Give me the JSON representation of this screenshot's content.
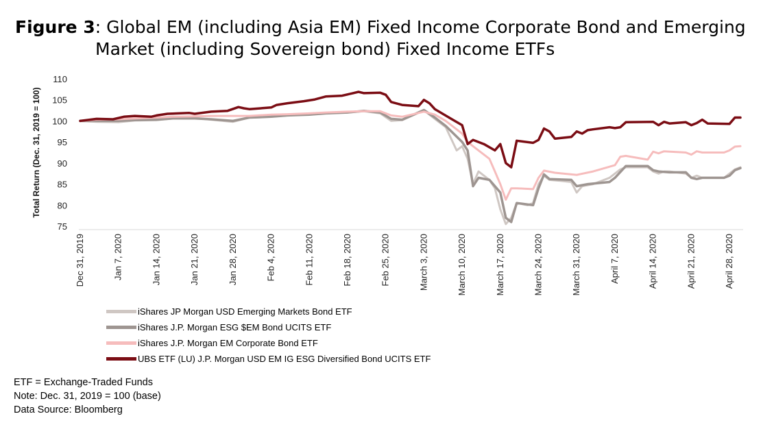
{
  "title": {
    "figure_label": "Figure 3",
    "colon": ":",
    "line1": "Global EM (including Asia EM) Fixed Income Corporate Bond and Emerging",
    "line2": "Market (including Sovereign bond) Fixed Income ETFs"
  },
  "notes": [
    "ETF = Exchange-Traded Funds",
    "Note: Dec. 31, 2019 = 100 (base)",
    "Data Source: Bloomberg"
  ],
  "chart_data": {
    "type": "line",
    "ylabel": "Total Return (Dec. 31, 2019 = 100)",
    "ylim": [
      75,
      110
    ],
    "yticks": [
      75,
      80,
      85,
      90,
      95,
      100,
      105,
      110
    ],
    "x_range": [
      "2019-12-31",
      "2020-04-30"
    ],
    "xticks": [
      {
        "date": "2019-12-31",
        "label": "Dec 31, 2019"
      },
      {
        "date": "2020-01-07",
        "label": "Jan 7, 2020"
      },
      {
        "date": "2020-01-14",
        "label": "Jan 14, 2020"
      },
      {
        "date": "2020-01-21",
        "label": "Jan 21, 2020"
      },
      {
        "date": "2020-01-28",
        "label": "Jan 28, 2020"
      },
      {
        "date": "2020-02-04",
        "label": "Feb 4, 2020"
      },
      {
        "date": "2020-02-11",
        "label": "Feb 11, 2020"
      },
      {
        "date": "2020-02-18",
        "label": "Feb 18, 2020"
      },
      {
        "date": "2020-02-25",
        "label": "Feb 25, 2020"
      },
      {
        "date": "2020-03-03",
        "label": "March 3, 2020"
      },
      {
        "date": "2020-03-10",
        "label": "March 10, 2020"
      },
      {
        "date": "2020-03-17",
        "label": "March 17, 2020"
      },
      {
        "date": "2020-03-24",
        "label": "March 24, 2020"
      },
      {
        "date": "2020-03-31",
        "label": "March 31, 2020"
      },
      {
        "date": "2020-04-07",
        "label": "April 7, 2020"
      },
      {
        "date": "2020-04-14",
        "label": "April 14, 2020"
      },
      {
        "date": "2020-04-21",
        "label": "April 21, 2020"
      },
      {
        "date": "2020-04-28",
        "label": "April 28, 2020"
      }
    ],
    "grid": false,
    "legend_position": "bottom-left",
    "series": [
      {
        "name": "iShares JP Morgan USD Emerging Markets Bond ETF",
        "color": "#cfc7c3",
        "width": 3,
        "points": [
          [
            "2019-12-31",
            100
          ],
          [
            "2020-01-03",
            99.8
          ],
          [
            "2020-01-07",
            99.7
          ],
          [
            "2020-01-10",
            100.1
          ],
          [
            "2020-01-14",
            100.2
          ],
          [
            "2020-01-17",
            100.6
          ],
          [
            "2020-01-21",
            100.7
          ],
          [
            "2020-01-24",
            100.3
          ],
          [
            "2020-01-28",
            99.8
          ],
          [
            "2020-01-31",
            100.8
          ],
          [
            "2020-02-04",
            101
          ],
          [
            "2020-02-07",
            101.3
          ],
          [
            "2020-02-11",
            101.6
          ],
          [
            "2020-02-14",
            101.8
          ],
          [
            "2020-02-18",
            102
          ],
          [
            "2020-02-21",
            102.3
          ],
          [
            "2020-02-24",
            101.8
          ],
          [
            "2020-02-26",
            100
          ],
          [
            "2020-02-28",
            100.2
          ],
          [
            "2020-03-03",
            102.5
          ],
          [
            "2020-03-05",
            100.5
          ],
          [
            "2020-03-07",
            98.5
          ],
          [
            "2020-03-09",
            93
          ],
          [
            "2020-03-10",
            94
          ],
          [
            "2020-03-11",
            91
          ],
          [
            "2020-03-12",
            85
          ],
          [
            "2020-03-13",
            88
          ],
          [
            "2020-03-15",
            86
          ],
          [
            "2020-03-16",
            84
          ],
          [
            "2020-03-17",
            79
          ],
          [
            "2020-03-18",
            75.5
          ],
          [
            "2020-03-19",
            77
          ],
          [
            "2020-03-20",
            80.5
          ],
          [
            "2020-03-22",
            80
          ],
          [
            "2020-03-23",
            80.5
          ],
          [
            "2020-03-24",
            85
          ],
          [
            "2020-03-25",
            87
          ],
          [
            "2020-03-26",
            86
          ],
          [
            "2020-03-28",
            85.8
          ],
          [
            "2020-03-30",
            85.5
          ],
          [
            "2020-03-31",
            83
          ],
          [
            "2020-04-01",
            84.5
          ],
          [
            "2020-04-03",
            85
          ],
          [
            "2020-04-06",
            86.5
          ],
          [
            "2020-04-07",
            87.5
          ],
          [
            "2020-04-08",
            88.5
          ],
          [
            "2020-04-09",
            89
          ],
          [
            "2020-04-13",
            89
          ],
          [
            "2020-04-14",
            88
          ],
          [
            "2020-04-15",
            87.5
          ],
          [
            "2020-04-16",
            88
          ],
          [
            "2020-04-17",
            88
          ],
          [
            "2020-04-20",
            87.5
          ],
          [
            "2020-04-21",
            86.5
          ],
          [
            "2020-04-22",
            87
          ],
          [
            "2020-04-23",
            86.5
          ],
          [
            "2020-04-27",
            86.5
          ],
          [
            "2020-04-28",
            87.5
          ],
          [
            "2020-04-29",
            88.5
          ],
          [
            "2020-04-30",
            89
          ]
        ]
      },
      {
        "name": "iShares J.P. Morgan ESG $EM Bond UCITS ETF",
        "color": "#9e9591",
        "width": 3.5,
        "points": [
          [
            "2019-12-31",
            100
          ],
          [
            "2020-01-03",
            100
          ],
          [
            "2020-01-07",
            100
          ],
          [
            "2020-01-10",
            100.2
          ],
          [
            "2020-01-14",
            100.3
          ],
          [
            "2020-01-17",
            100.6
          ],
          [
            "2020-01-21",
            100.6
          ],
          [
            "2020-01-24",
            100.4
          ],
          [
            "2020-01-28",
            100
          ],
          [
            "2020-01-31",
            100.8
          ],
          [
            "2020-02-04",
            101
          ],
          [
            "2020-02-07",
            101.3
          ],
          [
            "2020-02-11",
            101.5
          ],
          [
            "2020-02-14",
            101.8
          ],
          [
            "2020-02-18",
            102
          ],
          [
            "2020-02-21",
            102.4
          ],
          [
            "2020-02-24",
            102
          ],
          [
            "2020-02-26",
            100.5
          ],
          [
            "2020-02-28",
            100.3
          ],
          [
            "2020-03-03",
            102.6
          ],
          [
            "2020-03-05",
            100.8
          ],
          [
            "2020-03-07",
            98.8
          ],
          [
            "2020-03-10",
            95
          ],
          [
            "2020-03-11",
            93
          ],
          [
            "2020-03-12",
            84.5
          ],
          [
            "2020-03-13",
            86.5
          ],
          [
            "2020-03-15",
            86
          ],
          [
            "2020-03-16",
            84.5
          ],
          [
            "2020-03-17",
            83
          ],
          [
            "2020-03-18",
            77
          ],
          [
            "2020-03-19",
            76
          ],
          [
            "2020-03-20",
            80.5
          ],
          [
            "2020-03-23",
            80
          ],
          [
            "2020-03-24",
            84
          ],
          [
            "2020-03-25",
            87.3
          ],
          [
            "2020-03-26",
            86.2
          ],
          [
            "2020-03-30",
            86
          ],
          [
            "2020-03-31",
            84.5
          ],
          [
            "2020-04-02",
            85
          ],
          [
            "2020-04-06",
            85.5
          ],
          [
            "2020-04-07",
            86.5
          ],
          [
            "2020-04-09",
            89.3
          ],
          [
            "2020-04-13",
            89.3
          ],
          [
            "2020-04-14",
            88.3
          ],
          [
            "2020-04-15",
            88
          ],
          [
            "2020-04-17",
            87.8
          ],
          [
            "2020-04-20",
            87.8
          ],
          [
            "2020-04-21",
            86.5
          ],
          [
            "2020-04-22",
            86.2
          ],
          [
            "2020-04-23",
            86.5
          ],
          [
            "2020-04-27",
            86.5
          ],
          [
            "2020-04-28",
            87
          ],
          [
            "2020-04-29",
            88.3
          ],
          [
            "2020-04-30",
            88.8
          ]
        ]
      },
      {
        "name": "iShares J.P. Morgan EM Corporate Bond ETF",
        "color": "#f6bcbc",
        "width": 3,
        "points": [
          [
            "2019-12-31",
            100
          ],
          [
            "2020-01-03",
            100.3
          ],
          [
            "2020-01-07",
            100.4
          ],
          [
            "2020-01-10",
            100.6
          ],
          [
            "2020-01-14",
            100.8
          ],
          [
            "2020-01-17",
            101
          ],
          [
            "2020-01-21",
            101.1
          ],
          [
            "2020-01-24",
            101.2
          ],
          [
            "2020-01-28",
            101.2
          ],
          [
            "2020-01-31",
            101.2
          ],
          [
            "2020-02-04",
            101.5
          ],
          [
            "2020-02-07",
            101.6
          ],
          [
            "2020-02-11",
            101.8
          ],
          [
            "2020-02-14",
            102
          ],
          [
            "2020-02-18",
            102.2
          ],
          [
            "2020-02-21",
            102.3
          ],
          [
            "2020-02-24",
            102.3
          ],
          [
            "2020-02-26",
            101.3
          ],
          [
            "2020-02-28",
            101
          ],
          [
            "2020-03-03",
            102.2
          ],
          [
            "2020-03-05",
            101.5
          ],
          [
            "2020-03-07",
            100
          ],
          [
            "2020-03-09",
            98
          ],
          [
            "2020-03-10",
            97
          ],
          [
            "2020-03-11",
            95
          ],
          [
            "2020-03-12",
            94
          ],
          [
            "2020-03-15",
            91
          ],
          [
            "2020-03-16",
            88
          ],
          [
            "2020-03-17",
            85
          ],
          [
            "2020-03-18",
            81.3
          ],
          [
            "2020-03-19",
            84
          ],
          [
            "2020-03-20",
            84
          ],
          [
            "2020-03-23",
            83.8
          ],
          [
            "2020-03-24",
            86.5
          ],
          [
            "2020-03-25",
            88.2
          ],
          [
            "2020-03-27",
            87.7
          ],
          [
            "2020-03-30",
            87.3
          ],
          [
            "2020-03-31",
            87.2
          ],
          [
            "2020-04-03",
            88
          ],
          [
            "2020-04-07",
            89.5
          ],
          [
            "2020-04-08",
            91.5
          ],
          [
            "2020-04-09",
            91.7
          ],
          [
            "2020-04-13",
            90.8
          ],
          [
            "2020-04-14",
            92.7
          ],
          [
            "2020-04-15",
            92.3
          ],
          [
            "2020-04-16",
            92.8
          ],
          [
            "2020-04-20",
            92.5
          ],
          [
            "2020-04-21",
            92
          ],
          [
            "2020-04-22",
            92.8
          ],
          [
            "2020-04-23",
            92.5
          ],
          [
            "2020-04-27",
            92.5
          ],
          [
            "2020-04-28",
            93
          ],
          [
            "2020-04-29",
            93.9
          ],
          [
            "2020-04-30",
            94
          ]
        ]
      },
      {
        "name": "UBS ETF (LU) J.P. Morgan USD EM IG ESG Diversified Bond UCITS ETF",
        "color": "#7b0d14",
        "width": 3.5,
        "points": [
          [
            "2019-12-31",
            100
          ],
          [
            "2020-01-03",
            100.5
          ],
          [
            "2020-01-06",
            100.4
          ],
          [
            "2020-01-08",
            101
          ],
          [
            "2020-01-10",
            101.2
          ],
          [
            "2020-01-13",
            101
          ],
          [
            "2020-01-14",
            101.3
          ],
          [
            "2020-01-16",
            101.7
          ],
          [
            "2020-01-20",
            101.9
          ],
          [
            "2020-01-21",
            101.7
          ],
          [
            "2020-01-24",
            102.2
          ],
          [
            "2020-01-27",
            102.4
          ],
          [
            "2020-01-29",
            103.3
          ],
          [
            "2020-01-30",
            103
          ],
          [
            "2020-01-31",
            102.8
          ],
          [
            "2020-02-03",
            103.1
          ],
          [
            "2020-02-04",
            103.2
          ],
          [
            "2020-02-05",
            103.8
          ],
          [
            "2020-02-07",
            104.2
          ],
          [
            "2020-02-10",
            104.7
          ],
          [
            "2020-02-12",
            105.1
          ],
          [
            "2020-02-14",
            105.8
          ],
          [
            "2020-02-17",
            106
          ],
          [
            "2020-02-19",
            106.6
          ],
          [
            "2020-02-20",
            106.9
          ],
          [
            "2020-02-21",
            106.6
          ],
          [
            "2020-02-24",
            106.7
          ],
          [
            "2020-02-25",
            106.2
          ],
          [
            "2020-02-26",
            104.5
          ],
          [
            "2020-02-28",
            103.8
          ],
          [
            "2020-03-02",
            103.5
          ],
          [
            "2020-03-03",
            105
          ],
          [
            "2020-03-04",
            104.2
          ],
          [
            "2020-03-05",
            102.8
          ],
          [
            "2020-03-08",
            100.5
          ],
          [
            "2020-03-10",
            99
          ],
          [
            "2020-03-11",
            94.5
          ],
          [
            "2020-03-12",
            95.5
          ],
          [
            "2020-03-14",
            94.5
          ],
          [
            "2020-03-16",
            93
          ],
          [
            "2020-03-17",
            94.5
          ],
          [
            "2020-03-18",
            90
          ],
          [
            "2020-03-19",
            89
          ],
          [
            "2020-03-20",
            95.3
          ],
          [
            "2020-03-23",
            94.8
          ],
          [
            "2020-03-24",
            95.5
          ],
          [
            "2020-03-25",
            98.2
          ],
          [
            "2020-03-26",
            97.5
          ],
          [
            "2020-03-27",
            95.8
          ],
          [
            "2020-03-30",
            96.2
          ],
          [
            "2020-03-31",
            97.5
          ],
          [
            "2020-04-01",
            97
          ],
          [
            "2020-04-02",
            97.8
          ],
          [
            "2020-04-03",
            98
          ],
          [
            "2020-04-06",
            98.5
          ],
          [
            "2020-04-07",
            98.3
          ],
          [
            "2020-04-08",
            98.5
          ],
          [
            "2020-04-09",
            99.7
          ],
          [
            "2020-04-14",
            99.8
          ],
          [
            "2020-04-15",
            99
          ],
          [
            "2020-04-16",
            99.8
          ],
          [
            "2020-04-17",
            99.4
          ],
          [
            "2020-04-20",
            99.7
          ],
          [
            "2020-04-21",
            99
          ],
          [
            "2020-04-22",
            99.5
          ],
          [
            "2020-04-23",
            100.3
          ],
          [
            "2020-04-24",
            99.4
          ],
          [
            "2020-04-28",
            99.3
          ],
          [
            "2020-04-29",
            100.8
          ],
          [
            "2020-04-30",
            100.8
          ]
        ]
      }
    ]
  }
}
